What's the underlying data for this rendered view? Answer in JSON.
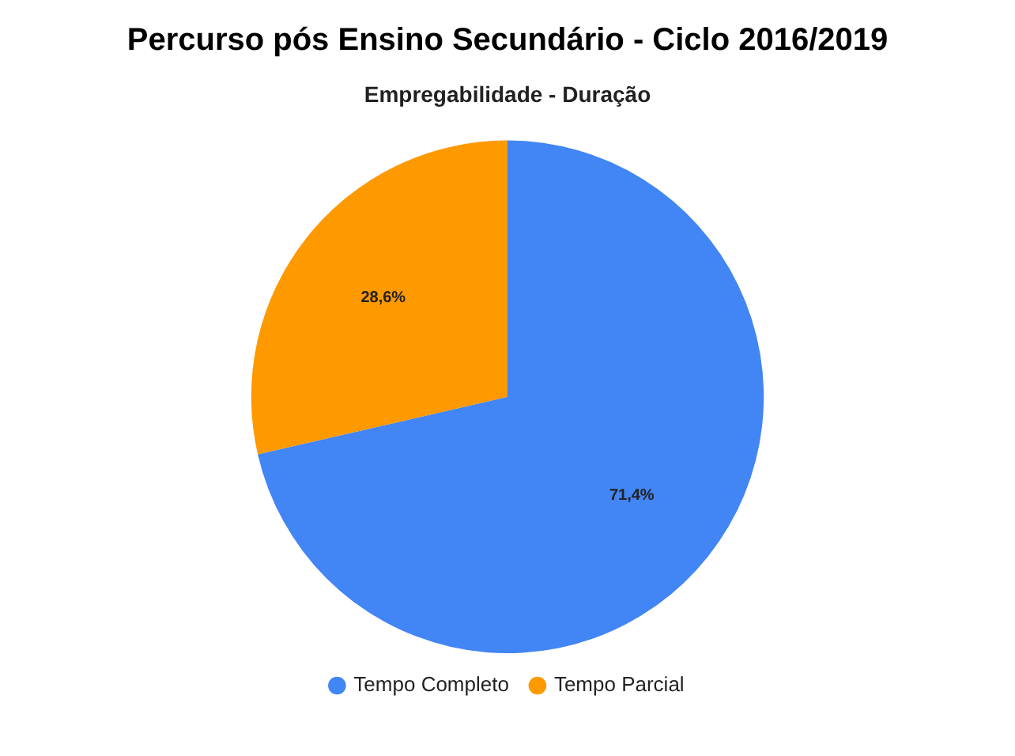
{
  "chart_data": {
    "type": "pie",
    "title": "Percurso pós Ensino Secundário - Ciclo 2016/2019",
    "subtitle": "Empregabilidade - Duração",
    "categories": [
      "Tempo Completo",
      "Tempo Parcial"
    ],
    "values": [
      71.4,
      28.6
    ],
    "colors": [
      "#4285f4",
      "#ff9900"
    ],
    "value_labels": [
      "71,4%",
      "28,6%"
    ],
    "legend": "bottom"
  }
}
